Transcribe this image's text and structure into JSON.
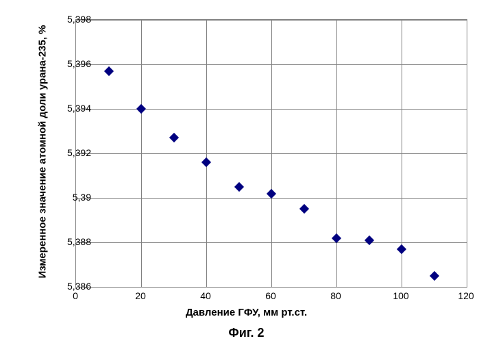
{
  "chart": {
    "type": "scatter",
    "caption": "Фиг. 2",
    "x_label": "Давление ГФУ, мм рт.ст.",
    "y_label": "Измеренное значение атомной доли урана-235, %",
    "x_min": 0,
    "x_max": 120,
    "y_min": 5.386,
    "y_max": 5.398,
    "x_ticks": [
      0,
      20,
      40,
      60,
      80,
      100,
      120
    ],
    "x_tick_labels": [
      "0",
      "20",
      "40",
      "60",
      "80",
      "100",
      "120"
    ],
    "y_ticks": [
      5.386,
      5.388,
      5.39,
      5.392,
      5.394,
      5.396,
      5.398
    ],
    "y_tick_labels": [
      "5,386",
      "5,388",
      "5,39",
      "5,392",
      "5,394",
      "5,396",
      "5,398"
    ],
    "grid_color": "#808080",
    "background_color": "#ffffff",
    "marker_color": "#000080",
    "label_fontsize": 15,
    "tick_fontsize": 14,
    "caption_fontsize": 18,
    "marker_size": 10,
    "points": [
      {
        "x": 10,
        "y": 5.3957
      },
      {
        "x": 20,
        "y": 5.394
      },
      {
        "x": 30,
        "y": 5.3927
      },
      {
        "x": 40,
        "y": 5.3916
      },
      {
        "x": 50,
        "y": 5.3905
      },
      {
        "x": 60,
        "y": 5.3902
      },
      {
        "x": 70,
        "y": 5.3895
      },
      {
        "x": 80,
        "y": 5.3882
      },
      {
        "x": 90,
        "y": 5.3881
      },
      {
        "x": 100,
        "y": 5.3877
      },
      {
        "x": 110,
        "y": 5.3865
      }
    ]
  }
}
